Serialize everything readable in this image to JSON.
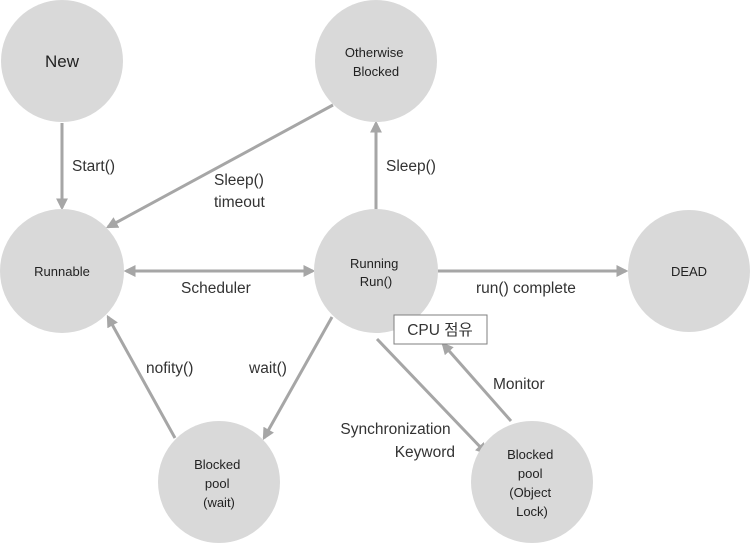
{
  "colors": {
    "node_fill": "#d9d9d9",
    "edge": "#a6a6a6",
    "text": "#222222"
  },
  "nodes": {
    "new": [
      "New"
    ],
    "otherwise_blocked": [
      "Otherwise",
      "Blocked"
    ],
    "runnable": [
      "Runnable"
    ],
    "running": [
      "Running",
      "Run()"
    ],
    "dead": [
      "DEAD"
    ],
    "blocked_wait": [
      "Blocked",
      "pool",
      "(wait)"
    ],
    "blocked_lock": [
      "Blocked",
      "pool",
      "(Object",
      "Lock)"
    ]
  },
  "edges": {
    "start": [
      "Start()"
    ],
    "sleep_timeout": [
      "Sleep()",
      "timeout"
    ],
    "sleep": [
      "Sleep()"
    ],
    "scheduler": [
      "Scheduler"
    ],
    "run_complete": [
      "run() complete"
    ],
    "notify": [
      "nofity()"
    ],
    "wait": [
      "wait()"
    ],
    "synchronization": [
      "Synchronization",
      "Keyword"
    ],
    "monitor": [
      "Monitor"
    ]
  },
  "cpu_label": "CPU 점유"
}
